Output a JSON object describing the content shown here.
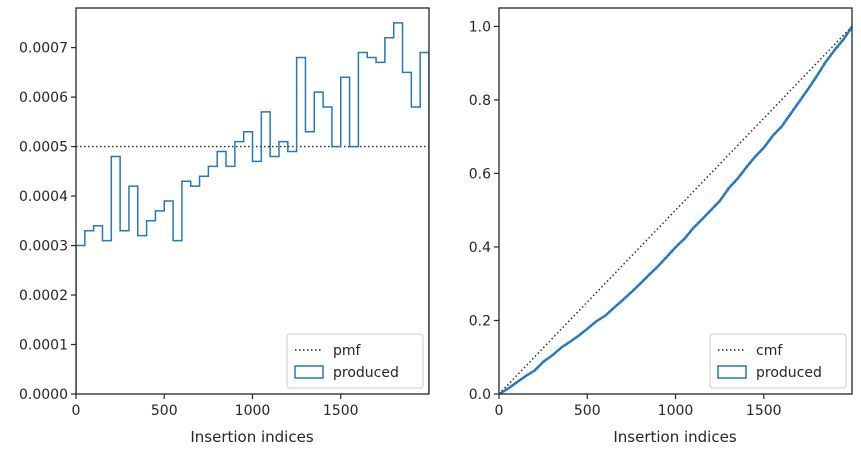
{
  "chart_data": [
    {
      "type": "step",
      "xlabel": "Insertion indices",
      "ylabel": "",
      "xlim": [
        0,
        2000
      ],
      "ylim": [
        0,
        0.00078
      ],
      "xticks": [
        0,
        500,
        1000,
        1500
      ],
      "xtick_labels": [
        "0",
        "500",
        "1000",
        "1500"
      ],
      "yticks": [
        0,
        0.0001,
        0.0002,
        0.0003,
        0.0004,
        0.0005,
        0.0006,
        0.0007
      ],
      "ytick_labels": [
        "0.0000",
        "0.0001",
        "0.0002",
        "0.0003",
        "0.0004",
        "0.0005",
        "0.0006",
        "0.0007"
      ],
      "legend_position": "lower-right",
      "series": [
        {
          "name": "pmf",
          "style": "dotted",
          "color": "#262626",
          "x": [
            0,
            2000
          ],
          "y": [
            0.0005,
            0.0005
          ]
        },
        {
          "name": "produced",
          "style": "step-histogram",
          "color": "#2878b5",
          "bin_edges": [
            0,
            50,
            100,
            150,
            200,
            250,
            300,
            350,
            400,
            450,
            500,
            550,
            600,
            650,
            700,
            750,
            800,
            850,
            900,
            950,
            1000,
            1050,
            1100,
            1150,
            1200,
            1250,
            1300,
            1350,
            1400,
            1450,
            1500,
            1550,
            1600,
            1650,
            1700,
            1750,
            1800,
            1850,
            1900,
            1950,
            2000
          ],
          "values": [
            0.0003,
            0.00033,
            0.00034,
            0.00031,
            0.00048,
            0.00033,
            0.00042,
            0.00032,
            0.00035,
            0.00037,
            0.00039,
            0.00031,
            0.00043,
            0.00042,
            0.00044,
            0.00046,
            0.00049,
            0.00046,
            0.00051,
            0.00053,
            0.00047,
            0.00057,
            0.00048,
            0.00051,
            0.00049,
            0.00068,
            0.00053,
            0.00061,
            0.00058,
            0.0005,
            0.00064,
            0.0005,
            0.00069,
            0.00068,
            0.00067,
            0.00072,
            0.00075,
            0.00065,
            0.00058,
            0.00069
          ]
        }
      ]
    },
    {
      "type": "line",
      "xlabel": "Insertion indices",
      "ylabel": "",
      "xlim": [
        0,
        2000
      ],
      "ylim": [
        0,
        1.05
      ],
      "xticks": [
        0,
        500,
        1000,
        1500
      ],
      "xtick_labels": [
        "0",
        "500",
        "1000",
        "1500"
      ],
      "yticks": [
        0,
        0.2,
        0.4,
        0.6,
        0.8,
        1.0
      ],
      "ytick_labels": [
        "0.0",
        "0.2",
        "0.4",
        "0.6",
        "0.8",
        "1.0"
      ],
      "legend_position": "lower-right",
      "series": [
        {
          "name": "cmf",
          "style": "dotted",
          "color": "#262626",
          "x": [
            0,
            2000
          ],
          "y": [
            0,
            1.0
          ]
        },
        {
          "name": "produced",
          "style": "cumulative-step",
          "color": "#2878b5",
          "x": [
            0,
            50,
            100,
            150,
            200,
            250,
            300,
            350,
            400,
            450,
            500,
            550,
            600,
            650,
            700,
            750,
            800,
            850,
            900,
            950,
            1000,
            1050,
            1100,
            1150,
            1200,
            1250,
            1300,
            1350,
            1400,
            1450,
            1500,
            1550,
            1600,
            1650,
            1700,
            1750,
            1800,
            1850,
            1900,
            1950,
            2000
          ],
          "y": [
            0,
            0.015,
            0.032,
            0.049,
            0.064,
            0.088,
            0.105,
            0.126,
            0.142,
            0.159,
            0.178,
            0.198,
            0.213,
            0.235,
            0.256,
            0.278,
            0.301,
            0.325,
            0.348,
            0.374,
            0.4,
            0.423,
            0.452,
            0.476,
            0.501,
            0.526,
            0.56,
            0.586,
            0.617,
            0.646,
            0.671,
            0.703,
            0.728,
            0.762,
            0.796,
            0.83,
            0.866,
            0.904,
            0.936,
            0.965,
            1.0
          ]
        }
      ]
    }
  ]
}
